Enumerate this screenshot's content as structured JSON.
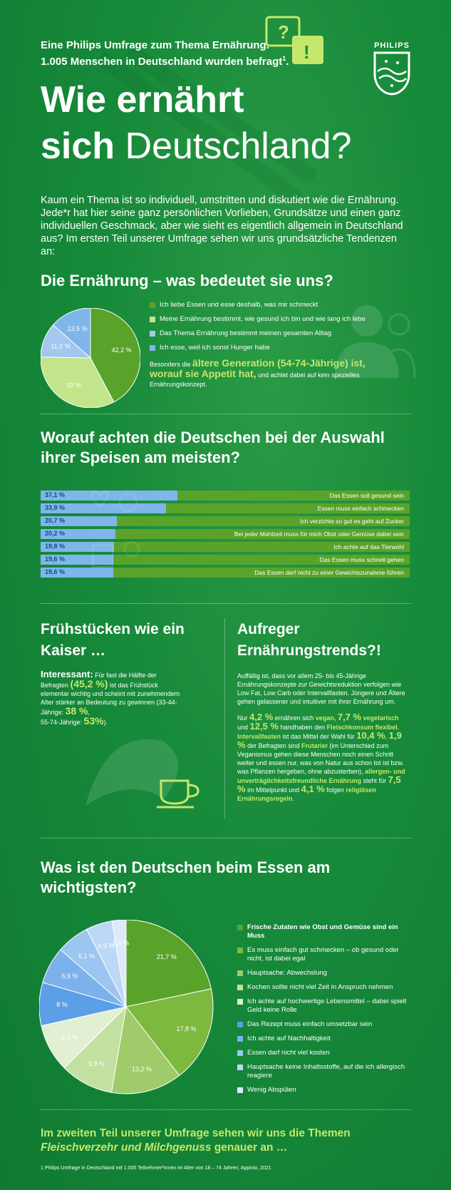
{
  "header": {
    "intro_line1": "Eine Philips Umfrage zum Thema Ernährung.",
    "intro_line2": "1.005 Menschen in Deutschland wurden  befragt",
    "intro_sup": "1",
    "logo_text": "PHILIPS",
    "title_line1": "Wie ernährt",
    "title_sich": "sich",
    "title_deutschland": "Deutschland?",
    "lead": "Kaum ein Thema ist so individuell, umstritten und diskutiert wie die Ernährung. Jede*r hat hier seine ganz persönlichen Vorlieben, Grundsätze und einen ganz individuellen Geschmack, aber wie sieht es eigentlich allgemein in Deutschland aus? Im ersten Teil unserer Umfrage sehen wir uns grundsätzliche Tendenzen an:"
  },
  "section1": {
    "title": "Die Ernährung – was bedeutet sie uns?",
    "note_pre": "Besonders die ",
    "note_hl1": "ältere Generation (54-74-Jährige) ist,",
    "note_hl2": "worauf sie Appetit hat,",
    "note_post": " und achtet dabei auf kein spezielles Ernährungskonzept."
  },
  "section2": {
    "title": "Worauf achten die Deutschen bei der Auswahl ihrer Speisen am meisten?"
  },
  "section3": {
    "title": "Frühstücken wie ein Kaiser …",
    "t_interessant": "Interessant:",
    "t1": " Für fast die Hälfte der Befragten ",
    "t_pct": "(45,2 %)",
    "t2": " ist das Frühstück elementar wichtig und scheint mit zunehmendem Alter stärker an Bedeutung zu gewinnen (33-44-Jährige: ",
    "t_38": "38 %",
    "t3": ",",
    "t4": "55-74-Jährige: ",
    "t_53": "53%",
    "t5": ")."
  },
  "section4": {
    "title": "Aufreger Ernährungstrends?!",
    "p1": "Auffällig ist, dass vor allem 25- bis 45-Jährige Ernährungskonzepte zur Gewichtsreduktion verfolgen wie Low Fat, Low Carb oder Intervallfasten. Jüngere und Ältere gehen gelassener und intuitiver mit ihrer Ernährung um.",
    "a": "Nur ",
    "b": "4,2 %",
    "c": " ernähren sich ",
    "d": "vegan,",
    "e": " ",
    "f": "7,7 %",
    "g": " vegetarisch",
    "h": " und ",
    "i": "12,5 %",
    "j": " handhaben den ",
    "k": "Fleischkonsum flexibel.",
    "l": " ",
    "m": "Intervallfasten",
    "n": " ist das Mittel der Wahl für ",
    "o": "10,4 %",
    "p": ", ",
    "q": "1,9 %",
    "r": " der Befragten sind ",
    "s": "Frutarier",
    "t": " (im Unterschied zum Veganismus gehen diese Menschen noch einen Schritt weiter und essen nur, was von Natur aus schon tot ist bzw. was Pflanzen hergeben, ohne abzusterben), ",
    "u": "allergen- und unverträglichkeitsfreundliche Ernährung",
    "v": " steht für ",
    "w": "7,5 %",
    "x": " im Mittelpunkt und ",
    "y": "4,1 %",
    "z": " folgen ",
    "zz": "religiösen Ernährungsregeln",
    "zzz": "."
  },
  "section5": {
    "title": "Was ist den Deutschen beim Essen am wichtigsten?"
  },
  "outro": {
    "line1": "Im zweiten Teil unserer Umfrage sehen wir uns die Themen",
    "line2_it": "Fleischverzehr und Milchgenuss",
    "line2_rest": " genauer an …"
  },
  "footnote": "1  Philips Umfrage in Deutschland mit 1.005 Teilnehmer*innen im Alter von 18 – 74 Jahren, Appinio, 2021",
  "chart_data": [
    {
      "type": "pie",
      "title": "Die Ernährung – was bedeutet sie uns?",
      "labels": [
        "Ich liebe Essen und esse deshalb, was mir schmeckt",
        "Meine Ernährung bestimmt, wie gesund ich bin und wie lang ich lebe",
        "Das Thema Ernährung bestimmt meinen gesamten Alltag",
        "Ich esse, weil ich sonst Hunger habe"
      ],
      "values": [
        42.2,
        33,
        11.2,
        13.5
      ],
      "value_labels": [
        "42,2 %",
        "33 %",
        "11,2 %",
        "13,5 %"
      ],
      "colors": [
        "#5aa32a",
        "#c2e58c",
        "#a3c7ee",
        "#7fb6ea"
      ]
    },
    {
      "type": "bar",
      "title": "Worauf achten die Deutschen bei der Auswahl ihrer Speisen am meisten?",
      "categories": [
        "Das Essen soll gesund sein",
        "Essen muss einfach schmecken",
        "Ich verzichte so gut es geht auf Zucker",
        "Bei jeder Mahlzeit muss für mich Obst oder Gemüse dabei sein",
        "Ich achte auf das Tierwohl",
        "Das Essen muss schnell gehen",
        "Das Essen darf nicht zu einer Gewichtszunahme führen"
      ],
      "values": [
        37.1,
        33.9,
        20.7,
        20.2,
        19.8,
        19.6,
        19.6
      ],
      "value_labels": [
        "37,1 %",
        "33,9 %",
        "20,7 %",
        "20,2 %",
        "19,8 %",
        "19,6 %",
        "19,6 %"
      ],
      "xlim": [
        0,
        100
      ],
      "colors": [
        "#7fb6ea",
        "#5aa32a"
      ]
    },
    {
      "type": "pie",
      "title": "Was ist den Deutschen beim Essen am wichtigsten?",
      "labels": [
        "Frische Zutaten wie Obst und Gemüse sind ein Muss",
        "Es muss einfach gut schmecken – ob gesund oder nicht, ist dabei egal",
        "Hauptsache: Abwechslung",
        "Kochen sollte nicht viel Zeit in Anspruch nehmen",
        "Ich achte auf hochwertige Lebensmittel – dabei spielt Geld keine Rolle",
        "Das Rezept muss einfach umsetzbar sein",
        "Ich achte auf Nachhaltigkeit",
        "Essen darf nicht viel kosten",
        "Hauptsache keine Inhaltsstoffe, auf die ich allergisch reagiere",
        "Wenig Abspülen"
      ],
      "values": [
        21.7,
        17.8,
        13.2,
        9.9,
        8.9,
        8,
        6.9,
        6.1,
        4.9,
        2.6
      ],
      "value_labels": [
        "21,7 %",
        "17,8 %",
        "13,2 %",
        "9,9 %",
        "8,9 %",
        "8 %",
        "6,9 %",
        "6,1 %",
        "4,9 %",
        "2,6 %"
      ],
      "colors": [
        "#5aa32a",
        "#7db83f",
        "#9fcb6a",
        "#c2e0a0",
        "#e1efd2",
        "#5b9fe6",
        "#7cb2ec",
        "#9cc5f1",
        "#bcd8f6",
        "#ddeafb"
      ]
    }
  ]
}
